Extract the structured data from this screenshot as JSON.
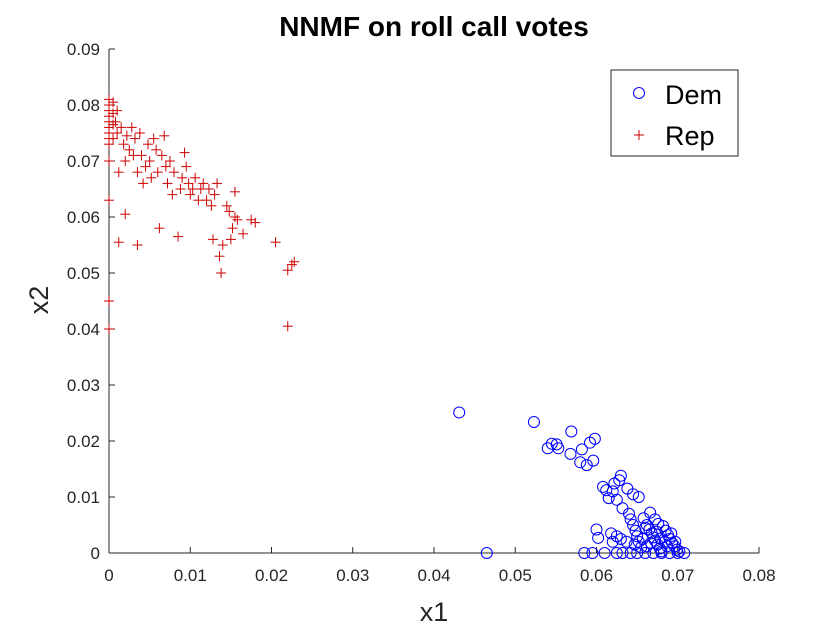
{
  "chart_data": {
    "type": "scatter",
    "title": "NNMF on roll call votes",
    "xlabel": "x1",
    "ylabel": "x2",
    "xlim": [
      0,
      0.08
    ],
    "ylim": [
      0,
      0.09
    ],
    "xticks": [
      "0",
      "0.01",
      "0.02",
      "0.03",
      "0.04",
      "0.05",
      "0.06",
      "0.07",
      "0.08"
    ],
    "yticks": [
      "0",
      "0.01",
      "0.02",
      "0.03",
      "0.04",
      "0.05",
      "0.06",
      "0.07",
      "0.08",
      "0.09"
    ],
    "grid": false,
    "legend_position": "top-right",
    "series": [
      {
        "name": "Dem",
        "marker": "circle",
        "color": "#0000ff",
        "points": [
          [
            0.0431,
            0.0251
          ],
          [
            0.0465,
            0.0
          ],
          [
            0.0523,
            0.0234
          ],
          [
            0.054,
            0.0187
          ],
          [
            0.0545,
            0.0195
          ],
          [
            0.0551,
            0.0194
          ],
          [
            0.0553,
            0.0187
          ],
          [
            0.0569,
            0.0217
          ],
          [
            0.0568,
            0.0177
          ],
          [
            0.058,
            0.0162
          ],
          [
            0.0582,
            0.0185
          ],
          [
            0.0588,
            0.0157
          ],
          [
            0.0592,
            0.0197
          ],
          [
            0.0598,
            0.0204
          ],
          [
            0.0596,
            0.0165
          ],
          [
            0.0608,
            0.0118
          ],
          [
            0.0612,
            0.0112
          ],
          [
            0.0615,
            0.0098
          ],
          [
            0.062,
            0.011
          ],
          [
            0.0622,
            0.0124
          ],
          [
            0.0628,
            0.013
          ],
          [
            0.063,
            0.0138
          ],
          [
            0.0638,
            0.0115
          ],
          [
            0.0645,
            0.0105
          ],
          [
            0.0652,
            0.01
          ],
          [
            0.0625,
            0.0095
          ],
          [
            0.0632,
            0.008
          ],
          [
            0.064,
            0.007
          ],
          [
            0.0618,
            0.0035
          ],
          [
            0.062,
            0.002
          ],
          [
            0.0625,
            0.003
          ],
          [
            0.063,
            0.0025
          ],
          [
            0.06,
            0.0042
          ],
          [
            0.0602,
            0.0027
          ],
          [
            0.0585,
            0.0
          ],
          [
            0.0595,
            0.0
          ],
          [
            0.061,
            0.0
          ],
          [
            0.0625,
            0.0
          ],
          [
            0.0632,
            0.0
          ],
          [
            0.0642,
            0.0
          ],
          [
            0.065,
            0.0
          ],
          [
            0.066,
            0.0
          ],
          [
            0.067,
            0.0
          ],
          [
            0.068,
            0.0
          ],
          [
            0.069,
            0.0
          ],
          [
            0.07,
            0.0
          ],
          [
            0.0708,
            0.0
          ],
          [
            0.0642,
            0.006
          ],
          [
            0.0645,
            0.005
          ],
          [
            0.0648,
            0.004
          ],
          [
            0.065,
            0.003
          ],
          [
            0.0652,
            0.002
          ],
          [
            0.0655,
            0.001
          ],
          [
            0.0658,
            0.0062
          ],
          [
            0.0662,
            0.005
          ],
          [
            0.0665,
            0.0042
          ],
          [
            0.0668,
            0.0035
          ],
          [
            0.067,
            0.0028
          ],
          [
            0.0672,
            0.0022
          ],
          [
            0.0675,
            0.0015
          ],
          [
            0.0678,
            0.0008
          ],
          [
            0.068,
            0.0003
          ],
          [
            0.0666,
            0.0072
          ],
          [
            0.0672,
            0.006
          ],
          [
            0.0676,
            0.0052
          ],
          [
            0.0682,
            0.0048
          ],
          [
            0.0685,
            0.004
          ],
          [
            0.0688,
            0.0032
          ],
          [
            0.069,
            0.0025
          ],
          [
            0.0693,
            0.0018
          ],
          [
            0.0696,
            0.0012
          ],
          [
            0.0699,
            0.0006
          ],
          [
            0.0702,
            0.0003
          ],
          [
            0.0684,
            0.002
          ],
          [
            0.0687,
            0.0012
          ],
          [
            0.0679,
            0.0026
          ],
          [
            0.0674,
            0.0038
          ],
          [
            0.0662,
            0.0012
          ],
          [
            0.0657,
            0.0025
          ],
          [
            0.0647,
            0.0015
          ],
          [
            0.0637,
            0.002
          ],
          [
            0.066,
            0.0045
          ],
          [
            0.0667,
            0.0018
          ],
          [
            0.0692,
            0.0035
          ],
          [
            0.0697,
            0.002
          ]
        ]
      },
      {
        "name": "Rep",
        "marker": "plus",
        "color": "#cc0000",
        "points": [
          [
            0.0,
            0.081
          ],
          [
            0.0,
            0.08
          ],
          [
            0.0,
            0.079
          ],
          [
            0.0,
            0.078
          ],
          [
            0.0,
            0.077
          ],
          [
            0.0,
            0.076
          ],
          [
            0.0,
            0.075
          ],
          [
            0.0,
            0.074
          ],
          [
            0.0,
            0.073
          ],
          [
            0.0,
            0.07
          ],
          [
            0.0,
            0.063
          ],
          [
            0.0,
            0.045
          ],
          [
            0.0,
            0.04
          ],
          [
            0.0005,
            0.0805
          ],
          [
            0.0005,
            0.0785
          ],
          [
            0.0005,
            0.0765
          ],
          [
            0.0005,
            0.074
          ],
          [
            0.0008,
            0.077
          ],
          [
            0.001,
            0.079
          ],
          [
            0.001,
            0.075
          ],
          [
            0.0012,
            0.068
          ],
          [
            0.0012,
            0.0555
          ],
          [
            0.0015,
            0.076
          ],
          [
            0.0018,
            0.073
          ],
          [
            0.002,
            0.07
          ],
          [
            0.002,
            0.0605
          ],
          [
            0.0022,
            0.0745
          ],
          [
            0.0025,
            0.072
          ],
          [
            0.0028,
            0.076
          ],
          [
            0.003,
            0.071
          ],
          [
            0.0032,
            0.074
          ],
          [
            0.0035,
            0.068
          ],
          [
            0.0035,
            0.055
          ],
          [
            0.0038,
            0.075
          ],
          [
            0.004,
            0.071
          ],
          [
            0.0042,
            0.066
          ],
          [
            0.0045,
            0.069
          ],
          [
            0.0048,
            0.073
          ],
          [
            0.005,
            0.07
          ],
          [
            0.0052,
            0.067
          ],
          [
            0.0055,
            0.074
          ],
          [
            0.0058,
            0.072
          ],
          [
            0.006,
            0.068
          ],
          [
            0.0062,
            0.058
          ],
          [
            0.0065,
            0.071
          ],
          [
            0.0068,
            0.0745
          ],
          [
            0.007,
            0.069
          ],
          [
            0.0072,
            0.066
          ],
          [
            0.0075,
            0.07
          ],
          [
            0.0078,
            0.064
          ],
          [
            0.008,
            0.068
          ],
          [
            0.0085,
            0.0565
          ],
          [
            0.0088,
            0.065
          ],
          [
            0.009,
            0.067
          ],
          [
            0.0093,
            0.0715
          ],
          [
            0.0095,
            0.069
          ],
          [
            0.0098,
            0.066
          ],
          [
            0.01,
            0.064
          ],
          [
            0.0103,
            0.065
          ],
          [
            0.0106,
            0.067
          ],
          [
            0.011,
            0.063
          ],
          [
            0.0113,
            0.065
          ],
          [
            0.0116,
            0.066
          ],
          [
            0.012,
            0.063
          ],
          [
            0.0123,
            0.065
          ],
          [
            0.0126,
            0.062
          ],
          [
            0.0128,
            0.056
          ],
          [
            0.013,
            0.064
          ],
          [
            0.0133,
            0.066
          ],
          [
            0.0136,
            0.053
          ],
          [
            0.0138,
            0.05
          ],
          [
            0.014,
            0.055
          ],
          [
            0.0145,
            0.062
          ],
          [
            0.0148,
            0.061
          ],
          [
            0.015,
            0.056
          ],
          [
            0.0152,
            0.058
          ],
          [
            0.0155,
            0.06
          ],
          [
            0.0155,
            0.0645
          ],
          [
            0.0158,
            0.0595
          ],
          [
            0.0165,
            0.057
          ],
          [
            0.0175,
            0.0595
          ],
          [
            0.018,
            0.059
          ],
          [
            0.0205,
            0.0555
          ],
          [
            0.022,
            0.0505
          ],
          [
            0.0225,
            0.0515
          ],
          [
            0.0228,
            0.052
          ],
          [
            0.022,
            0.0405
          ]
        ]
      }
    ]
  }
}
